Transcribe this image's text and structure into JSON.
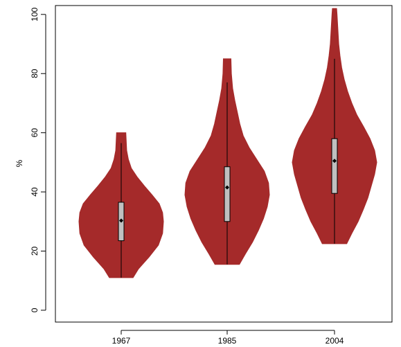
{
  "chart_data": {
    "type": "violin",
    "title": "",
    "xlabel": "",
    "ylabel": "%",
    "ylim": [
      -4,
      103
    ],
    "y_ticks": [
      0,
      20,
      40,
      60,
      80,
      100
    ],
    "categories": [
      "1967",
      "1985",
      "2004"
    ],
    "violin_color": "#a52a2a",
    "box_color": "#c0c0c0",
    "grid": false,
    "series": [
      {
        "category": "1967",
        "min": 11,
        "q1": 23.5,
        "median": 30.3,
        "q3": 36.5,
        "max": 56.5,
        "density_max": 60,
        "density": [
          [
            11,
            0.28
          ],
          [
            14,
            0.41
          ],
          [
            18,
            0.66
          ],
          [
            22,
            0.88
          ],
          [
            26,
            0.98
          ],
          [
            30,
            1.0
          ],
          [
            33,
            0.98
          ],
          [
            36,
            0.9
          ],
          [
            39,
            0.73
          ],
          [
            42,
            0.55
          ],
          [
            45,
            0.38
          ],
          [
            48,
            0.24
          ],
          [
            51,
            0.17
          ],
          [
            54,
            0.13
          ],
          [
            57,
            0.12
          ],
          [
            60,
            0.11
          ]
        ]
      },
      {
        "category": "1985",
        "min": 15.5,
        "q1": 30,
        "median": 41.5,
        "q3": 48.5,
        "max": 77,
        "density_max": 85,
        "density": [
          [
            15.5,
            0.29
          ],
          [
            19,
            0.43
          ],
          [
            23,
            0.6
          ],
          [
            27,
            0.74
          ],
          [
            31,
            0.86
          ],
          [
            35,
            0.95
          ],
          [
            39,
            1.0
          ],
          [
            43,
            0.98
          ],
          [
            47,
            0.88
          ],
          [
            51,
            0.7
          ],
          [
            55,
            0.52
          ],
          [
            59,
            0.38
          ],
          [
            63,
            0.3
          ],
          [
            67,
            0.24
          ],
          [
            71,
            0.18
          ],
          [
            75,
            0.13
          ],
          [
            80,
            0.1
          ],
          [
            85,
            0.09
          ]
        ]
      },
      {
        "category": "2004",
        "min": 22.5,
        "q1": 39.5,
        "median": 50.5,
        "q3": 58,
        "max": 85,
        "density_max": 102,
        "density": [
          [
            22.5,
            0.29
          ],
          [
            26,
            0.41
          ],
          [
            30,
            0.56
          ],
          [
            34,
            0.68
          ],
          [
            38,
            0.79
          ],
          [
            42,
            0.87
          ],
          [
            46,
            0.95
          ],
          [
            50,
            1.0
          ],
          [
            54,
            0.95
          ],
          [
            58,
            0.84
          ],
          [
            62,
            0.69
          ],
          [
            66,
            0.53
          ],
          [
            70,
            0.41
          ],
          [
            74,
            0.31
          ],
          [
            78,
            0.23
          ],
          [
            82,
            0.17
          ],
          [
            86,
            0.13
          ],
          [
            90,
            0.1
          ],
          [
            95,
            0.08
          ],
          [
            100,
            0.06
          ],
          [
            102,
            0.05
          ]
        ]
      }
    ]
  }
}
